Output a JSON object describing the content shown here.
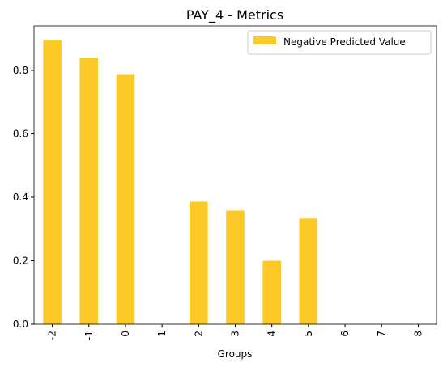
{
  "chart_data": {
    "type": "bar",
    "title": "PAY_4 - Metrics",
    "xlabel": "Groups",
    "ylabel": "",
    "categories": [
      "-2",
      "-1",
      "0",
      "1",
      "2",
      "3",
      "4",
      "5",
      "6",
      "7",
      "8"
    ],
    "series": [
      {
        "name": "Negative Predicted Value",
        "color": "#fcc927",
        "values": [
          0.895,
          0.838,
          0.786,
          0,
          0.386,
          0.358,
          0.2,
          0.333,
          0,
          0,
          0
        ]
      }
    ],
    "ylim": [
      0,
      0.94
    ],
    "yticks": [
      "0.0",
      "0.2",
      "0.4",
      "0.6",
      "0.8"
    ],
    "grid": false,
    "legend_position": "top-right"
  }
}
